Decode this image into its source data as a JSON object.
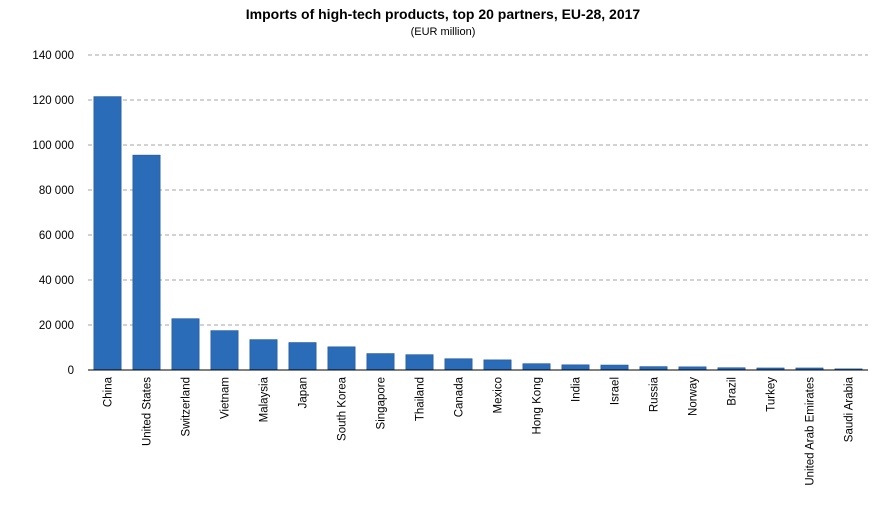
{
  "chart_data": {
    "type": "bar",
    "title": "Imports of high-tech products, top 20 partners, EU-28, 2017",
    "subtitle": "(EUR million)",
    "xlabel": "",
    "ylabel": "",
    "ylim": [
      0,
      140000
    ],
    "yticks": [
      0,
      20000,
      40000,
      60000,
      80000,
      100000,
      120000,
      140000
    ],
    "ytick_labels": [
      "0",
      "20 000",
      "40 000",
      "60 000",
      "80 000",
      "100 000",
      "120 000",
      "140 000"
    ],
    "grid": true,
    "categories": [
      "China",
      "United States",
      "Switzerland",
      "Vietnam",
      "Malaysia",
      "Japan",
      "South Korea",
      "Singapore",
      "Thailand",
      "Canada",
      "Mexico",
      "Hong Kong",
      "India",
      "Israel",
      "Russia",
      "Norway",
      "Brazil",
      "Turkey",
      "United Arab Emirates",
      "Saudi Arabia"
    ],
    "values": [
      121500,
      95500,
      22800,
      17500,
      13500,
      12200,
      10300,
      7300,
      6800,
      5000,
      4500,
      2800,
      2300,
      2200,
      1500,
      1400,
      1000,
      900,
      900,
      500
    ],
    "colors": {
      "bar": "#2a6cb8",
      "bar_edge": "#1d5496",
      "grid": "#a6a6a6",
      "axis": "#000000"
    }
  }
}
